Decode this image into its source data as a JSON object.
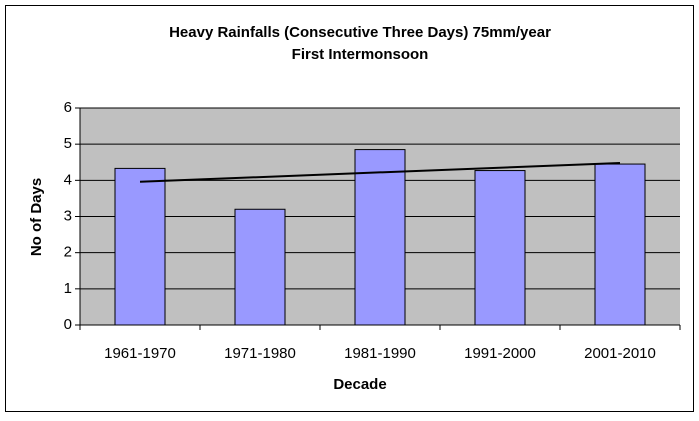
{
  "chart_data": {
    "type": "bar",
    "title": "Heavy Rainfalls (Consecutive Three Days) 75mm/year",
    "subtitle": "First Intermonsoon",
    "x_label": "Decade",
    "y_label": "No of Days",
    "categories": [
      "1961-1970",
      "1971-1980",
      "1981-1990",
      "1991-2000",
      "2001-2010"
    ],
    "values": [
      4.33,
      3.2,
      4.85,
      4.27,
      4.45
    ],
    "color": "#9999ff",
    "trendline": [
      3.96,
      4.48
    ],
    "trend_color": "#000000",
    "ylim": [
      0,
      6
    ],
    "yticks": [
      0,
      1,
      2,
      3,
      4,
      5,
      6
    ],
    "grid": true,
    "plot_background": "#c0c0c0"
  }
}
